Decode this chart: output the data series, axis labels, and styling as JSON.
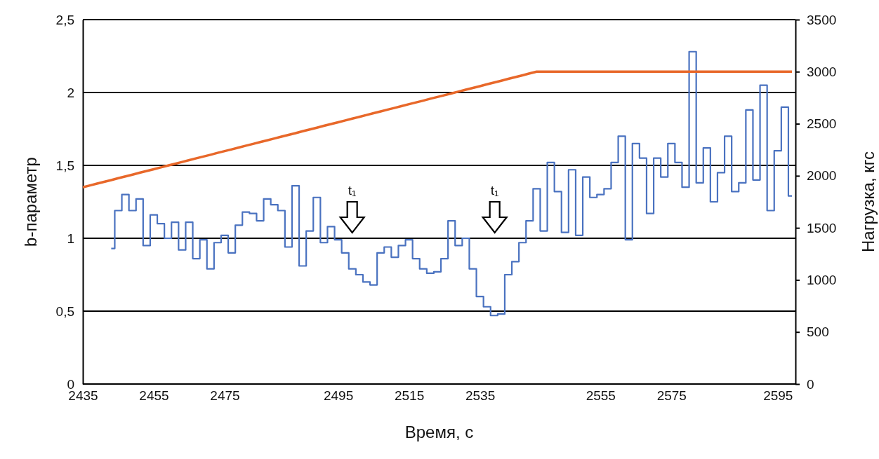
{
  "chart_data": {
    "type": "line",
    "xlabel": "Время, с",
    "ylabel": "b-параметр",
    "y2label": "Нагрузка, кгс",
    "categories": [
      "2435",
      null,
      null,
      null,
      null,
      null,
      null,
      null,
      null,
      null,
      "2455",
      null,
      null,
      null,
      null,
      null,
      null,
      null,
      null,
      null,
      "2475",
      null,
      null,
      null,
      null,
      null,
      null,
      null,
      null,
      null,
      null,
      null,
      null,
      null,
      null,
      null,
      "2495",
      null,
      null,
      null,
      null,
      null,
      null,
      null,
      null,
      null,
      "2515",
      null,
      null,
      null,
      null,
      null,
      null,
      null,
      null,
      null,
      "2535",
      null,
      null,
      null,
      null,
      null,
      null,
      null,
      null,
      null,
      null,
      null,
      null,
      null,
      null,
      null,
      null,
      "2555",
      null,
      null,
      null,
      null,
      null,
      null,
      null,
      null,
      null,
      "2575",
      null,
      null,
      null,
      null,
      null,
      null,
      null,
      null,
      null,
      null,
      null,
      null,
      null,
      null,
      "2595",
      null,
      null
    ],
    "series": [
      {
        "type": "step",
        "color": "#4a72c0",
        "axis": "y",
        "values": [
          null,
          null,
          null,
          null,
          0.93,
          1.19,
          1.3,
          1.19,
          1.27,
          0.95,
          1.16,
          1.1,
          1.0,
          1.11,
          0.92,
          1.11,
          0.86,
          0.99,
          0.79,
          0.97,
          1.02,
          0.9,
          1.09,
          1.18,
          1.17,
          1.12,
          1.27,
          1.23,
          1.19,
          0.94,
          1.36,
          0.81,
          1.05,
          1.28,
          0.97,
          1.08,
          0.99,
          0.9,
          0.79,
          0.75,
          0.7,
          0.68,
          0.9,
          0.94,
          0.87,
          0.95,
          0.99,
          0.86,
          0.79,
          0.76,
          0.77,
          0.86,
          1.12,
          0.95,
          1.0,
          0.79,
          0.6,
          0.53,
          0.47,
          0.48,
          0.75,
          0.84,
          0.97,
          1.12,
          1.34,
          1.05,
          1.52,
          1.32,
          1.04,
          1.47,
          1.02,
          1.42,
          1.28,
          1.3,
          1.34,
          1.52,
          1.7,
          0.99,
          1.65,
          1.55,
          1.17,
          1.55,
          1.42,
          1.65,
          1.52,
          1.35,
          2.28,
          1.38,
          1.62,
          1.25,
          1.45,
          1.7,
          1.32,
          1.38,
          1.88,
          1.4,
          2.05,
          1.19,
          1.6,
          1.9,
          1.29
        ]
      },
      {
        "type": "line",
        "color": "#e8682a",
        "axis": "y2",
        "values": [
          1890,
          1907,
          1925,
          1942,
          1959,
          1977,
          1994,
          2011,
          2029,
          2046,
          2063,
          2081,
          2098,
          2115,
          2133,
          2150,
          2168,
          2185,
          2202,
          2220,
          2237,
          2254,
          2272,
          2289,
          2306,
          2324,
          2341,
          2358,
          2376,
          2393,
          2410,
          2428,
          2445,
          2462,
          2480,
          2497,
          2514,
          2532,
          2549,
          2566,
          2584,
          2601,
          2618,
          2636,
          2653,
          2670,
          2688,
          2705,
          2722,
          2740,
          2757,
          2774,
          2792,
          2809,
          2827,
          2844,
          2861,
          2879,
          2896,
          2913,
          2931,
          2948,
          2965,
          2983,
          3000,
          3000,
          3000,
          3000,
          3000,
          3000,
          3000,
          3000,
          3000,
          3000,
          3000,
          3000,
          3000,
          3000,
          3000,
          3000,
          3000,
          3000,
          3000,
          3000,
          3000,
          3000,
          3000,
          3000,
          3000,
          3000,
          3000,
          3000,
          3000,
          3000,
          3000,
          3000,
          3000,
          3000,
          3000,
          3000,
          3000
        ]
      }
    ],
    "ylim": [
      0,
      2.5
    ],
    "yticks": [
      0,
      {
        "value": 0.5,
        "label": "0,5"
      },
      1,
      {
        "value": 1.5,
        "label": "1,5"
      },
      2,
      {
        "value": 2.5,
        "label": "2,5"
      }
    ],
    "y2lim": [
      0,
      3500
    ],
    "y2ticks": [
      0,
      500,
      1000,
      1500,
      2000,
      2500,
      3000,
      3500
    ],
    "grid": "y",
    "marker": "none",
    "annotations": [
      "t₁",
      "t₁"
    ]
  }
}
